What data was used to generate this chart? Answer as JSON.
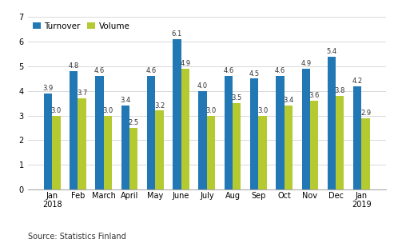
{
  "categories": [
    "Jan\n2018",
    "Feb",
    "March",
    "April",
    "May",
    "June",
    "July",
    "Aug",
    "Sep",
    "Oct",
    "Nov",
    "Dec",
    "Jan\n2019"
  ],
  "turnover": [
    3.9,
    4.8,
    4.6,
    3.4,
    4.6,
    6.1,
    4.0,
    4.6,
    4.5,
    4.6,
    4.9,
    5.4,
    4.2
  ],
  "volume": [
    3.0,
    3.7,
    3.0,
    2.5,
    3.2,
    4.9,
    3.0,
    3.5,
    3.0,
    3.4,
    3.6,
    3.8,
    2.9
  ],
  "turnover_color": "#2278b5",
  "volume_color": "#b5c930",
  "ylim": [
    0,
    7
  ],
  "yticks": [
    0,
    1,
    2,
    3,
    4,
    5,
    6,
    7
  ],
  "legend_labels": [
    "Turnover",
    "Volume"
  ],
  "source_text": "Source: Statistics Finland",
  "bar_width": 0.32,
  "grid_color": "#d9d9d9",
  "background_color": "#ffffff",
  "label_fontsize": 6.0,
  "tick_fontsize": 7.0,
  "legend_fontsize": 7.5
}
